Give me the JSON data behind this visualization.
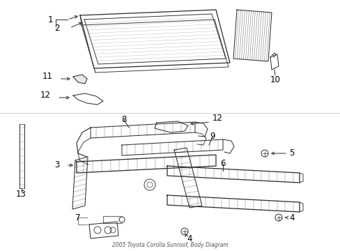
{
  "title": "2005 Toyota Corolla Sunroof, Body Diagram",
  "bg_color": "#ffffff",
  "line_color": "#2a2a2a",
  "figsize": [
    4.89,
    3.6
  ],
  "dpi": 100,
  "font_size": 8.5
}
